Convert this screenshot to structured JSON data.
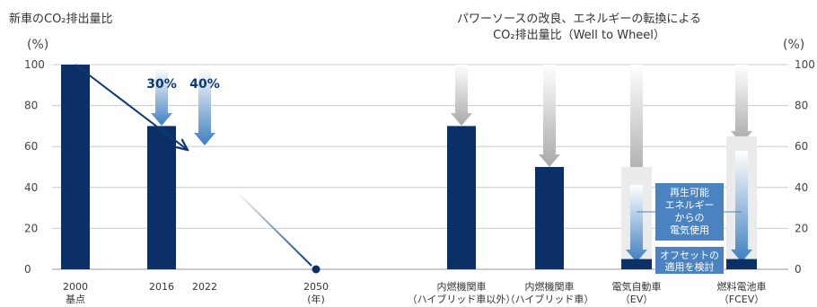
{
  "titles": {
    "left": "新車のCO₂排出量比",
    "right_line1": "パワーソースの改良、エネルギーの転換による",
    "right_line2": "CO₂排出量比（Well to Wheel）"
  },
  "unit_left": "(%)",
  "unit_right": "(%)",
  "colors": {
    "bar": "#0b3066",
    "accent": "#0b3a75",
    "box": "#4a83c0",
    "grid": "#cccccc"
  },
  "chart_data": [
    {
      "type": "bar",
      "title": "新車のCO₂排出量比",
      "ylabel": "(%)",
      "ylim": [
        0,
        100
      ],
      "yticks": [
        0,
        20,
        40,
        60,
        80,
        100
      ],
      "categories": [
        "2000 基点",
        "2016",
        "2022",
        "2050 (年)"
      ],
      "x_labels": [
        [
          "2000",
          "基点"
        ],
        [
          "2016",
          ""
        ],
        [
          "2022",
          ""
        ],
        [
          "2050",
          "(年)"
        ]
      ],
      "values": [
        100,
        70,
        null,
        0
      ],
      "reductions": [
        {
          "category": "2016",
          "label": "30%"
        },
        {
          "category": "2022",
          "label": "40%"
        }
      ],
      "trend_points": [
        [
          2000,
          100
        ],
        [
          2022,
          60
        ],
        [
          2050,
          0
        ]
      ]
    },
    {
      "type": "bar",
      "title": "パワーソースの改良、エネルギーの転換によるCO₂排出量比（Well to Wheel）",
      "ylabel": "(%)",
      "ylim": [
        0,
        100
      ],
      "yticks": [
        0,
        20,
        40,
        60,
        80,
        100
      ],
      "categories": [
        "内燃機関車(ハイブリッド車以外)",
        "内燃機関車(ハイブリッド車)",
        "電気自動車(EV)",
        "燃料電池車(FCEV)"
      ],
      "x_labels": [
        [
          "内燃機関車",
          "（ハイブリッド車以外）"
        ],
        [
          "内燃機関車",
          "（ハイブリッド車）"
        ],
        [
          "電気自動車",
          "（EV）"
        ],
        [
          "燃料電池車",
          "（FCEV）"
        ]
      ],
      "values": [
        70,
        50,
        5,
        5
      ],
      "reference_levels": [
        null,
        null,
        50,
        65
      ],
      "annotations": [
        {
          "lines": [
            "再生可能",
            "エネルギー",
            "からの",
            "電気使用"
          ]
        },
        {
          "lines": [
            "オフセットの",
            "適用を検討"
          ]
        }
      ]
    }
  ]
}
